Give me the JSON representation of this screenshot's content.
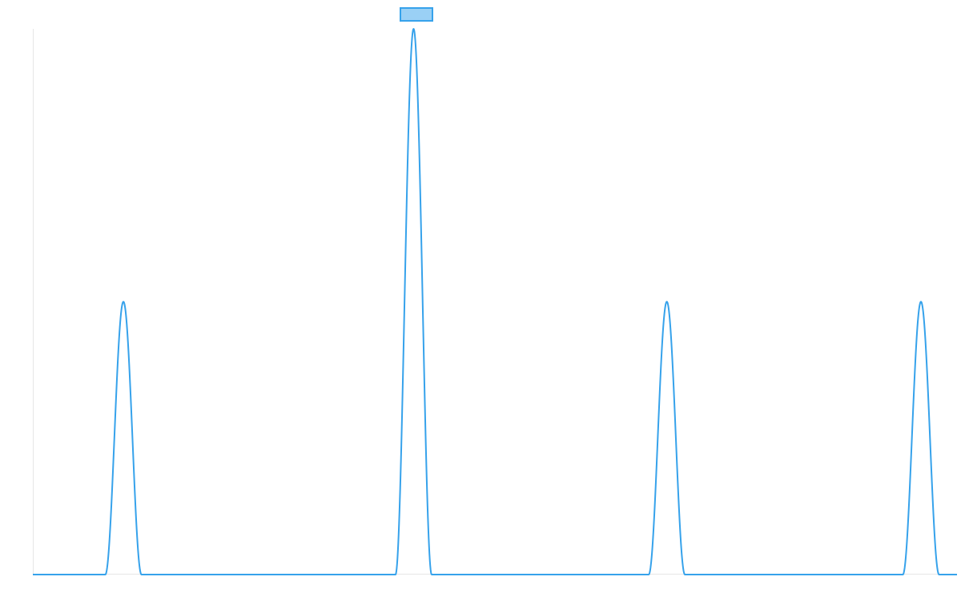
{
  "chart_data": {
    "type": "line",
    "title": "",
    "xlabel": "",
    "ylabel": "",
    "xlim": [
      0,
      1
    ],
    "ylim": [
      0,
      1
    ],
    "grid": false,
    "legend": "top-center",
    "series": [
      {
        "color": "#36a2eb",
        "fill": "#9ad0f5",
        "peaks": [
          {
            "x": 0.098,
            "y": 0.5
          },
          {
            "x": 0.412,
            "y": 1.0
          },
          {
            "x": 0.686,
            "y": 0.5
          },
          {
            "x": 0.961,
            "y": 0.5
          }
        ],
        "peak_half_width": 0.0196
      }
    ]
  }
}
